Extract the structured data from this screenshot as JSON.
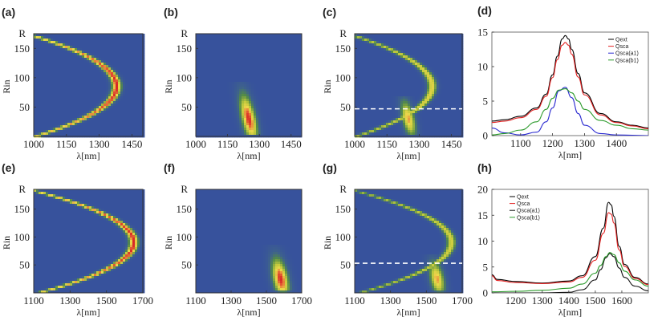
{
  "chart_data": [
    {
      "panel": "(a)",
      "type": "heatmap",
      "xlabel": "λ[nm]",
      "ylabel": "Rin",
      "ytop_label": "R",
      "xticks": [
        1000,
        1150,
        1300,
        1450
      ],
      "yticks": [
        50,
        100,
        150
      ],
      "xlim": [
        1000,
        1500
      ],
      "ylim": [
        0,
        175
      ],
      "bands": [
        {
          "kind": "parabola",
          "vertex_x": 1380,
          "vertex_y": 85,
          "a_x_at_y0": 1010,
          "peak_intensity": 1.0
        }
      ],
      "dashed_line_y": null
    },
    {
      "panel": "(b)",
      "type": "heatmap",
      "xlabel": "λ[nm]",
      "ylabel": "Rin",
      "ytop_label": "R",
      "xticks": [
        1000,
        1150,
        1300,
        1450
      ],
      "yticks": [
        50,
        100,
        150
      ],
      "xlim": [
        1000,
        1500
      ],
      "ylim": [
        0,
        175
      ],
      "blobs": [
        {
          "x_center": 1250,
          "y_center": 30,
          "x_width": 35,
          "y_from": 0,
          "y_to": 95,
          "peak_intensity": 1.0
        }
      ],
      "dashed_line_y": null
    },
    {
      "panel": "(c)",
      "type": "heatmap",
      "xlabel": "λ[nm]",
      "ylabel": "Rin",
      "ytop_label": "R",
      "xticks": [
        1000,
        1150,
        1300,
        1450
      ],
      "yticks": [
        50,
        100,
        150
      ],
      "xlim": [
        1000,
        1500
      ],
      "ylim": [
        0,
        175
      ],
      "bands": [
        {
          "kind": "parabola",
          "vertex_x": 1360,
          "vertex_y": 85,
          "a_x_at_y0": 1010,
          "peak_intensity": 0.75
        }
      ],
      "blobs": [
        {
          "x_center": 1250,
          "y_center": 30,
          "x_width": 30,
          "y_from": 0,
          "y_to": 70,
          "peak_intensity": 0.85
        }
      ],
      "dashed_line_y": 47
    },
    {
      "panel": "(d)",
      "type": "line",
      "xlabel": "λ[nm]",
      "xticks": [
        1100,
        1200,
        1300,
        1400
      ],
      "yticks": [
        0,
        5,
        10,
        15
      ],
      "xlim": [
        1010,
        1500
      ],
      "ylim": [
        0,
        15
      ],
      "legend_position": "top-right",
      "series": [
        {
          "name": "Qext",
          "color": "#000000",
          "x": [
            1010,
            1050,
            1100,
            1150,
            1180,
            1200,
            1215,
            1230,
            1240,
            1250,
            1260,
            1280,
            1300,
            1350,
            1400,
            1450,
            1500
          ],
          "values": [
            2.1,
            2.3,
            2.8,
            4.0,
            6.0,
            8.8,
            11.5,
            14.0,
            14.5,
            14.0,
            12.5,
            9.0,
            6.2,
            3.2,
            2.0,
            1.5,
            1.1
          ]
        },
        {
          "name": "Qsca",
          "color": "#e32222",
          "x": [
            1010,
            1050,
            1100,
            1150,
            1180,
            1200,
            1215,
            1230,
            1240,
            1250,
            1260,
            1280,
            1300,
            1350,
            1400,
            1450,
            1500
          ],
          "values": [
            1.9,
            2.1,
            2.6,
            3.8,
            5.7,
            8.4,
            11.0,
            13.1,
            13.5,
            13.1,
            11.8,
            8.5,
            5.9,
            3.0,
            1.9,
            1.4,
            1.0
          ]
        },
        {
          "name": "Qsca(a1)",
          "color": "#2a2ad0",
          "x": [
            1010,
            1050,
            1100,
            1150,
            1180,
            1200,
            1220,
            1240,
            1260,
            1280,
            1300,
            1350,
            1400,
            1450,
            1500
          ],
          "values": [
            1.1,
            0.4,
            0.1,
            0.5,
            2.0,
            4.0,
            6.5,
            7.0,
            5.5,
            3.2,
            1.5,
            0.3,
            0.1,
            0.05,
            0.0
          ]
        },
        {
          "name": "Qsca(b1)",
          "color": "#2a9a2a",
          "x": [
            1010,
            1050,
            1100,
            1150,
            1180,
            1200,
            1220,
            1240,
            1260,
            1280,
            1300,
            1350,
            1400,
            1450,
            1500
          ],
          "values": [
            0.1,
            0.3,
            0.8,
            2.0,
            3.8,
            5.4,
            6.6,
            6.8,
            6.2,
            5.0,
            3.8,
            2.2,
            1.5,
            1.0,
            0.8
          ]
        }
      ]
    },
    {
      "panel": "(e)",
      "type": "heatmap",
      "xlabel": "λ[nm]",
      "ylabel": "Rin",
      "ytop_label": "R",
      "xticks": [
        1100,
        1300,
        1500,
        1700
      ],
      "yticks": [
        50,
        100,
        150
      ],
      "xlim": [
        1100,
        1700
      ],
      "ylim": [
        0,
        185
      ],
      "bands": [
        {
          "kind": "parabola",
          "vertex_x": 1650,
          "vertex_y": 90,
          "a_x_at_y0": 1130,
          "peak_intensity": 1.0
        }
      ],
      "dashed_line_y": null
    },
    {
      "panel": "(f)",
      "type": "heatmap",
      "xlabel": "λ[nm]",
      "ylabel": "Rin",
      "ytop_label": "R",
      "xticks": [
        1100,
        1300,
        1500,
        1700
      ],
      "yticks": [
        50,
        100,
        150
      ],
      "xlim": [
        1100,
        1700
      ],
      "ylim": [
        0,
        185
      ],
      "blobs": [
        {
          "x_center": 1580,
          "y_center": 25,
          "x_width": 45,
          "y_from": 0,
          "y_to": 85,
          "peak_intensity": 1.0
        }
      ],
      "dashed_line_y": null
    },
    {
      "panel": "(g)",
      "type": "heatmap",
      "xlabel": "λ[nm]",
      "ylabel": "Rin",
      "ytop_label": "R",
      "xticks": [
        1100,
        1300,
        1500,
        1700
      ],
      "yticks": [
        50,
        100,
        150
      ],
      "xlim": [
        1100,
        1700
      ],
      "ylim": [
        0,
        185
      ],
      "bands": [
        {
          "kind": "parabola",
          "vertex_x": 1640,
          "vertex_y": 90,
          "a_x_at_y0": 1130,
          "peak_intensity": 0.7
        }
      ],
      "blobs": [
        {
          "x_center": 1560,
          "y_center": 25,
          "x_width": 40,
          "y_from": 0,
          "y_to": 70,
          "peak_intensity": 0.85
        }
      ],
      "dashed_line_y": 53
    },
    {
      "panel": "(h)",
      "type": "line",
      "xlabel": "λ[nm]",
      "xticks": [
        1200,
        1300,
        1400,
        1500,
        1600
      ],
      "yticks": [
        0,
        5,
        10,
        15,
        20
      ],
      "xlim": [
        1110,
        1700
      ],
      "ylim": [
        0,
        20
      ],
      "legend_position": "top-left",
      "series": [
        {
          "name": "Qext",
          "color": "#000000",
          "x": [
            1110,
            1130,
            1200,
            1300,
            1400,
            1450,
            1500,
            1530,
            1550,
            1560,
            1570,
            1590,
            1610,
            1650,
            1700
          ],
          "values": [
            3.5,
            2.6,
            2.2,
            1.9,
            2.3,
            3.3,
            7.0,
            12.5,
            17.5,
            17.0,
            14.8,
            9.0,
            5.5,
            3.0,
            1.7
          ]
        },
        {
          "name": "Qsca",
          "color": "#e32222",
          "x": [
            1110,
            1130,
            1200,
            1300,
            1400,
            1450,
            1500,
            1530,
            1550,
            1560,
            1570,
            1590,
            1610,
            1650,
            1700
          ],
          "values": [
            3.3,
            2.4,
            2.0,
            1.8,
            2.1,
            3.0,
            6.3,
            11.5,
            15.5,
            15.2,
            13.5,
            8.3,
            5.1,
            2.8,
            1.6
          ]
        },
        {
          "name": "Qsca(a1)",
          "color": "#111111",
          "x": [
            1110,
            1200,
            1300,
            1400,
            1450,
            1500,
            1520,
            1540,
            1555,
            1570,
            1590,
            1610,
            1650,
            1700
          ],
          "values": [
            0.0,
            0.0,
            0.0,
            0.1,
            0.6,
            2.5,
            4.5,
            6.8,
            7.6,
            7.0,
            4.8,
            3.0,
            1.3,
            0.4
          ]
        },
        {
          "name": "Qsca(b1)",
          "color": "#2a9a2a",
          "x": [
            1110,
            1200,
            1300,
            1400,
            1450,
            1500,
            1520,
            1540,
            1555,
            1570,
            1590,
            1610,
            1650,
            1700
          ],
          "values": [
            0.2,
            0.3,
            0.5,
            0.9,
            1.7,
            3.8,
            5.3,
            7.0,
            7.8,
            7.4,
            5.8,
            4.2,
            2.5,
            1.3
          ]
        }
      ]
    }
  ]
}
